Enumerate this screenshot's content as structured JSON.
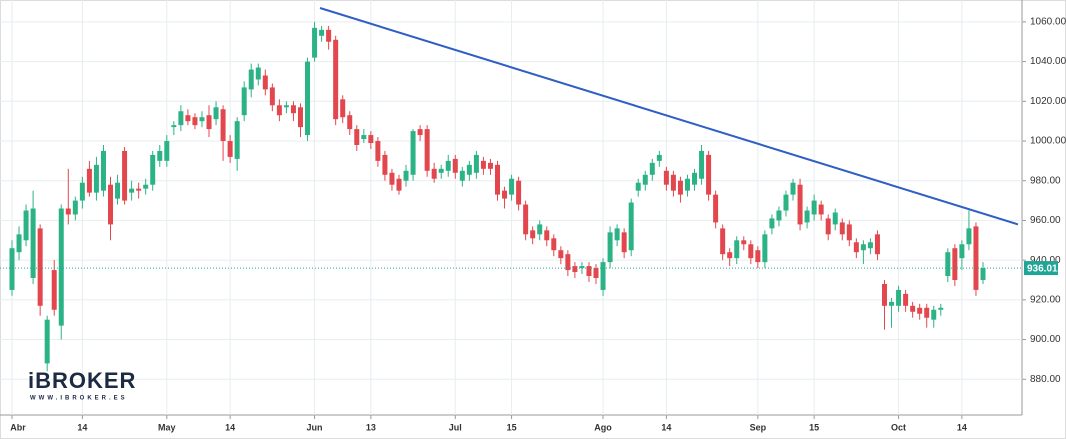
{
  "chart_data": {
    "type": "candlestick",
    "categories": [
      "Abr",
      null,
      null,
      null,
      null,
      null,
      null,
      null,
      null,
      null,
      "14",
      null,
      null,
      null,
      null,
      null,
      null,
      null,
      null,
      null,
      null,
      null,
      "May",
      null,
      null,
      null,
      null,
      null,
      null,
      null,
      null,
      "14",
      null,
      null,
      null,
      null,
      null,
      null,
      null,
      null,
      null,
      null,
      null,
      "Jun",
      null,
      null,
      null,
      null,
      null,
      null,
      null,
      "13",
      null,
      null,
      null,
      null,
      null,
      null,
      null,
      null,
      null,
      null,
      null,
      "Jul",
      null,
      null,
      null,
      null,
      null,
      null,
      null,
      "15",
      null,
      null,
      null,
      null,
      null,
      null,
      null,
      null,
      null,
      null,
      null,
      null,
      "Ago",
      null,
      null,
      null,
      null,
      null,
      null,
      null,
      null,
      "14",
      null,
      null,
      null,
      null,
      null,
      null,
      null,
      null,
      null,
      null,
      null,
      null,
      "Sep",
      null,
      null,
      null,
      null,
      null,
      null,
      null,
      "15",
      null,
      null,
      null,
      null,
      null,
      null,
      null,
      null,
      null,
      null,
      null,
      "Oct",
      null,
      null,
      null,
      null,
      null,
      null,
      null,
      null,
      "14",
      null,
      null,
      null
    ],
    "open": [
      925,
      944,
      950,
      931,
      956,
      888,
      935,
      907,
      966,
      963,
      970,
      986,
      974,
      975,
      978,
      971,
      995,
      974,
      976,
      976,
      978,
      990,
      990,
      1007,
      1008,
      1013,
      1012,
      1010,
      1013,
      1011,
      1016,
      1000,
      991,
      1013,
      1026,
      1031,
      1033,
      1027,
      1018,
      1017,
      1018,
      1017,
      1003,
      1042,
      1053,
      1056,
      1051,
      1021,
      1013,
      1006,
      1001,
      1003,
      1000,
      993,
      984,
      981,
      980,
      983,
      1006,
      1006,
      986,
      984,
      985,
      991,
      980,
      983,
      984,
      990,
      989,
      988,
      975,
      973,
      980,
      968,
      955,
      953,
      955,
      951,
      945,
      943,
      937,
      936,
      937,
      936,
      925,
      939,
      950,
      954,
      945,
      975,
      978,
      983,
      990,
      985,
      983,
      980,
      975,
      978,
      981,
      993,
      973,
      956,
      944,
      941,
      950,
      948,
      945,
      939,
      956,
      960,
      965,
      973,
      978,
      959,
      963,
      968,
      961,
      958,
      959,
      958,
      949,
      945,
      946,
      953,
      928,
      917,
      917,
      923,
      917,
      916,
      916,
      910,
      915,
      932,
      946,
      941,
      948,
      957,
      930
    ],
    "high": [
      950,
      957,
      968,
      975,
      958,
      912,
      940,
      968,
      986,
      972,
      982,
      990,
      992,
      998,
      982,
      983,
      997,
      980,
      979,
      981,
      995,
      998,
      1003,
      1010,
      1018,
      1016,
      1014,
      1015,
      1018,
      1020,
      1018,
      1003,
      1012,
      1030,
      1039,
      1039,
      1036,
      1029,
      1021,
      1020,
      1020,
      1019,
      1042,
      1060,
      1058,
      1058,
      1053,
      1023,
      1015,
      1008,
      1006,
      1005,
      1002,
      995,
      986,
      983,
      988,
      1006,
      1008,
      1008,
      989,
      988,
      993,
      993,
      987,
      990,
      995,
      992,
      991,
      990,
      977,
      983,
      982,
      970,
      957,
      960,
      957,
      953,
      947,
      945,
      939,
      939,
      939,
      938,
      941,
      957,
      958,
      956,
      971,
      981,
      985,
      991,
      995,
      987,
      985,
      982,
      983,
      986,
      998,
      995,
      975,
      958,
      946,
      952,
      952,
      950,
      947,
      955,
      963,
      967,
      975,
      981,
      981,
      967,
      973,
      970,
      963,
      966,
      961,
      960,
      951,
      950,
      951,
      955,
      930,
      921,
      927,
      925,
      919,
      918,
      918,
      917,
      918,
      946,
      948,
      950,
      965,
      959,
      939
    ],
    "low": [
      922,
      940,
      947,
      928,
      912,
      884,
      912,
      900,
      958,
      960,
      966,
      972,
      970,
      972,
      950,
      968,
      968,
      970,
      971,
      973,
      975,
      987,
      987,
      1003,
      1005,
      1008,
      1006,
      1007,
      1002,
      1008,
      990,
      989,
      985,
      1010,
      1022,
      1028,
      1023,
      1015,
      1010,
      1014,
      1010,
      1002,
      1000,
      1040,
      1050,
      1046,
      1008,
      1009,
      1003,
      995,
      999,
      996,
      987,
      980,
      975,
      973,
      977,
      980,
      1000,
      982,
      979,
      981,
      982,
      981,
      977,
      980,
      981,
      983,
      983,
      970,
      966,
      970,
      965,
      950,
      948,
      950,
      947,
      942,
      938,
      932,
      931,
      933,
      929,
      928,
      922,
      936,
      947,
      941,
      942,
      972,
      975,
      980,
      987,
      975,
      972,
      969,
      972,
      975,
      978,
      970,
      956,
      940,
      937,
      938,
      945,
      938,
      936,
      936,
      953,
      957,
      962,
      970,
      955,
      956,
      960,
      960,
      950,
      955,
      950,
      947,
      941,
      938,
      943,
      940,
      905,
      906,
      914,
      914,
      911,
      910,
      906,
      906,
      912,
      929,
      927,
      935,
      945,
      922,
      928
    ],
    "close": [
      946,
      953,
      965,
      966,
      917,
      910,
      915,
      966,
      963,
      970,
      979,
      974,
      988,
      995,
      958,
      979,
      970,
      976,
      975,
      978,
      993,
      995,
      1000,
      1008,
      1015,
      1010,
      1008,
      1012,
      1006,
      1017,
      1000,
      992,
      1010,
      1027,
      1036,
      1037,
      1026,
      1018,
      1013,
      1018,
      1014,
      1007,
      1040,
      1057,
      1056,
      1050,
      1011,
      1012,
      1006,
      998,
      1003,
      999,
      990,
      983,
      978,
      975,
      985,
      1005,
      1003,
      985,
      981,
      986,
      990,
      984,
      985,
      988,
      993,
      986,
      986,
      973,
      971,
      981,
      968,
      953,
      951,
      958,
      950,
      945,
      941,
      935,
      934,
      937,
      932,
      931,
      939,
      954,
      956,
      944,
      969,
      979,
      983,
      989,
      993,
      978,
      975,
      973,
      981,
      984,
      995,
      973,
      959,
      943,
      941,
      950,
      948,
      941,
      939,
      953,
      961,
      965,
      973,
      979,
      958,
      965,
      970,
      963,
      953,
      964,
      953,
      950,
      944,
      948,
      949,
      943,
      917,
      919,
      925,
      917,
      914,
      913,
      911,
      915,
      916,
      944,
      930,
      948,
      956,
      925,
      936.01
    ],
    "up_color": "#2bb386",
    "down_color": "#e2474e",
    "ylim": [
      862,
      1067
    ],
    "yticks": [
      {
        "value": 880,
        "label": "880.00"
      },
      {
        "value": 900,
        "label": "900.00"
      },
      {
        "value": 920,
        "label": "920.00"
      },
      {
        "value": 940,
        "label": "940.00"
      },
      {
        "value": 960,
        "label": "960.00"
      },
      {
        "value": 980,
        "label": "980.00"
      },
      {
        "value": 1000,
        "label": "1000.00"
      },
      {
        "value": 1020,
        "label": "1020.00"
      },
      {
        "value": 1040,
        "label": "1040.00"
      },
      {
        "value": 1060,
        "label": "1060.00"
      }
    ],
    "grid": true,
    "trendline": {
      "color": "#2f5fc4",
      "values": [
        1067,
        958
      ]
    },
    "last_price_color": "#1fa596"
  },
  "watermark": {
    "title": "iBROKER",
    "subtitle": "WWW.IBROKER.ES"
  }
}
